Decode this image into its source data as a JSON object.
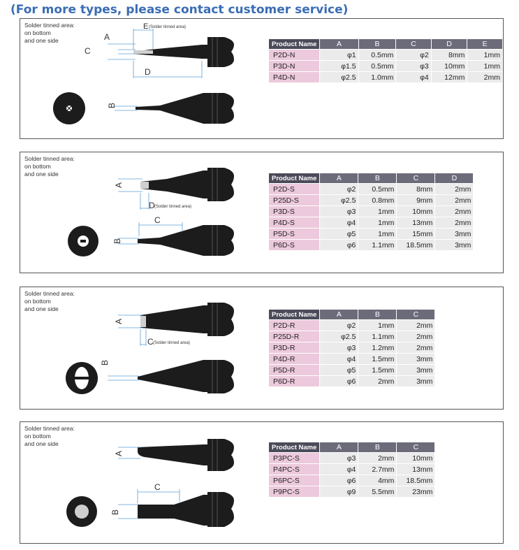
{
  "header": "(For more types, please contact customer service)",
  "panels": [
    {
      "note": [
        "Solder tinned area:",
        "on bottom",
        "and one side"
      ],
      "dims": {
        "a": "A",
        "c": "C",
        "e": "E",
        "e_note": "(Solder tinned area)",
        "d": "D",
        "b": "B"
      },
      "table": {
        "headers": [
          "Product Name",
          "A",
          "B",
          "C",
          "D",
          "E"
        ],
        "rows": [
          [
            "P2D-N",
            "φ1",
            "0.5mm",
            "φ2",
            "8mm",
            "1mm"
          ],
          [
            "P3D-N",
            "φ1.5",
            "0.5mm",
            "φ3",
            "10mm",
            "1mm"
          ],
          [
            "P4D-N",
            "φ2.5",
            "1.0mm",
            "φ4",
            "12mm",
            "2mm"
          ]
        ]
      }
    },
    {
      "note": [
        "Solder tinned area:",
        "on bottom",
        "and one side"
      ],
      "dims": {
        "a": "A",
        "d": "D",
        "d_note": "(Solder tinned area)",
        "c": "C",
        "b": "B"
      },
      "table": {
        "headers": [
          "Product Name",
          "A",
          "B",
          "C",
          "D"
        ],
        "rows": [
          [
            "P2D-S",
            "φ2",
            "0.5mm",
            "8mm",
            "2mm"
          ],
          [
            "P25D-S",
            "φ2.5",
            "0.8mm",
            "9mm",
            "2mm"
          ],
          [
            "P3D-S",
            "φ3",
            "1mm",
            "10mm",
            "2mm"
          ],
          [
            "P4D-S",
            "φ4",
            "1mm",
            "13mm",
            "2mm"
          ],
          [
            "P5D-S",
            "φ5",
            "1mm",
            "15mm",
            "3mm"
          ],
          [
            "P6D-S",
            "φ6",
            "1.1mm",
            "18.5mm",
            "3mm"
          ]
        ]
      }
    },
    {
      "note": [
        "Solder tinned area:",
        "on bottom",
        "and one side"
      ],
      "dims": {
        "a": "A",
        "c": "C",
        "c_note": "(Solder tinned area)",
        "b": "B"
      },
      "table": {
        "headers": [
          "Product Name",
          "A",
          "B",
          "C"
        ],
        "rows": [
          [
            "P2D-R",
            "φ2",
            "1mm",
            "2mm"
          ],
          [
            "P25D-R",
            "φ2.5",
            "1.1mm",
            "2mm"
          ],
          [
            "P3D-R",
            "φ3",
            "1.2mm",
            "2mm"
          ],
          [
            "P4D-R",
            "φ4",
            "1.5mm",
            "3mm"
          ],
          [
            "P5D-R",
            "φ5",
            "1.5mm",
            "3mm"
          ],
          [
            "P6D-R",
            "φ6",
            "2mm",
            "3mm"
          ]
        ]
      }
    },
    {
      "note": [
        "Solder tinned area:",
        "on bottom",
        "and one side"
      ],
      "dims": {
        "a": "A",
        "c": "C",
        "b": "B"
      },
      "table": {
        "headers": [
          "Product Name",
          "A",
          "B",
          "C"
        ],
        "rows": [
          [
            "P3PC-S",
            "φ3",
            "2mm",
            "10mm"
          ],
          [
            "P4PC-S",
            "φ4",
            "2.7mm",
            "13mm"
          ],
          [
            "P6PC-S",
            "φ6",
            "4mm",
            "18.5mm"
          ],
          [
            "P9PC-S",
            "φ9",
            "5.5mm",
            "23mm"
          ]
        ]
      }
    }
  ]
}
